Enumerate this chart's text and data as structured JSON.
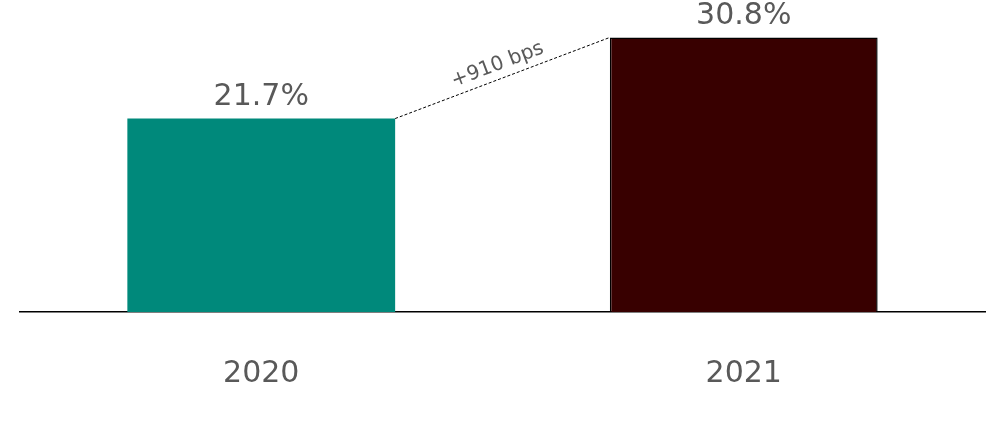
{
  "chart_data": {
    "type": "bar",
    "categories": [
      "2020",
      "2021"
    ],
    "values": [
      21.7,
      30.8
    ],
    "colors": [
      "#00897b",
      "#380000"
    ],
    "value_labels": [
      "21.7%",
      "30.8%"
    ],
    "annotations": [
      "+910 bps"
    ]
  }
}
